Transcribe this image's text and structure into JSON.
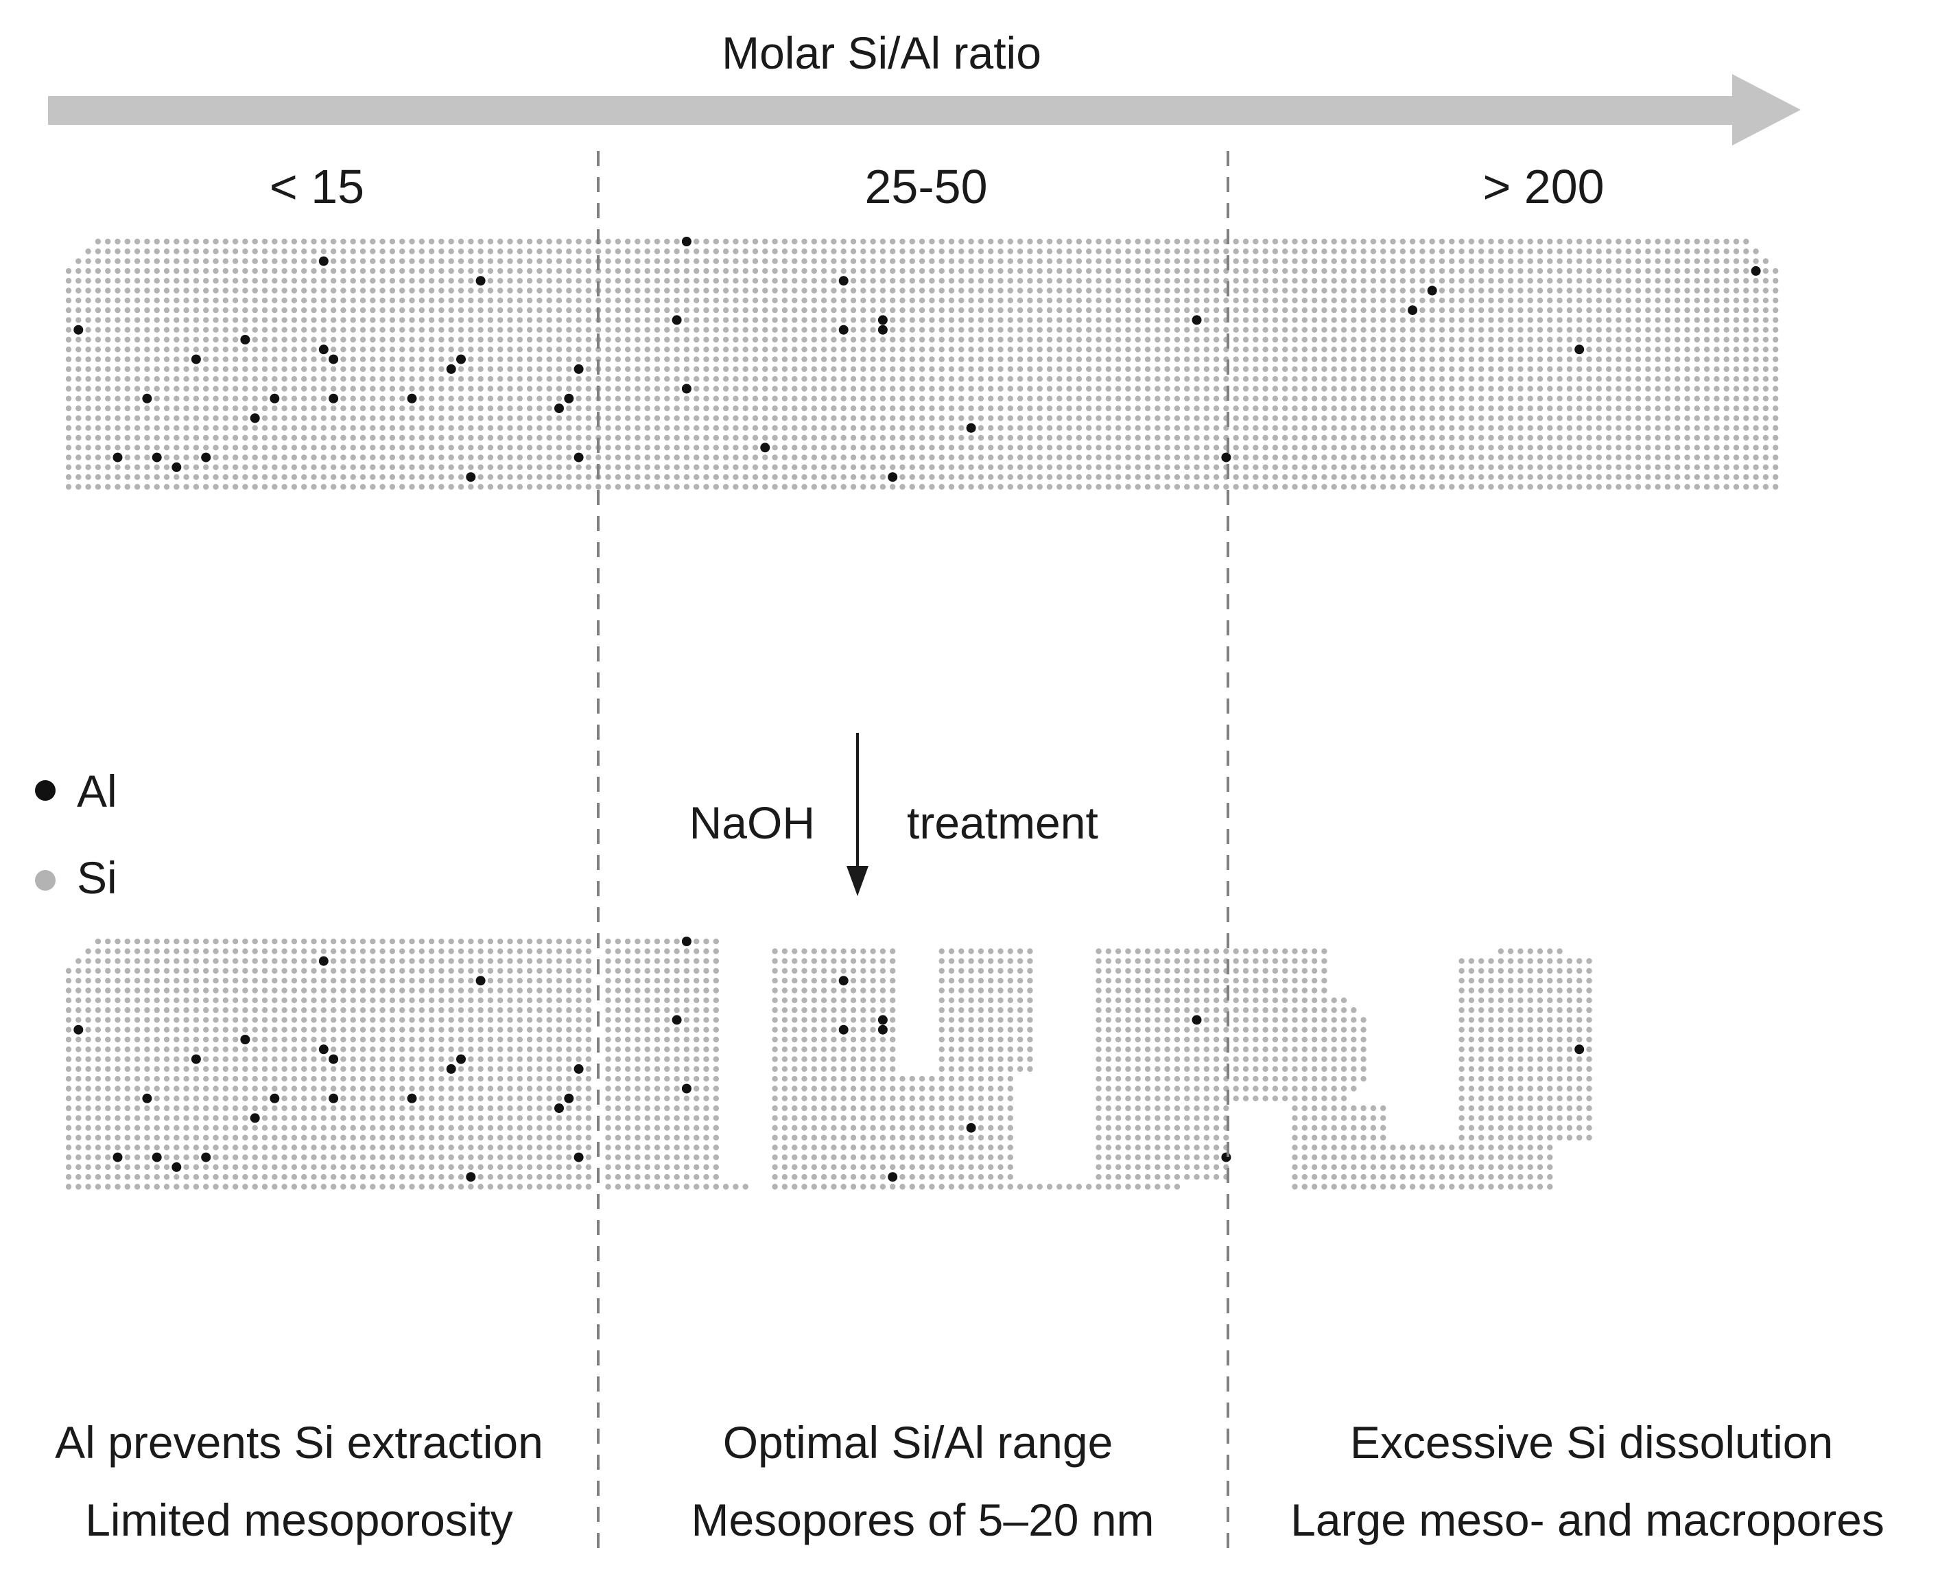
{
  "header": {
    "axis_title": "Molar Si/Al ratio",
    "ranges": [
      "< 15",
      "25-50",
      "> 200"
    ]
  },
  "legend": {
    "items": [
      {
        "label": "Al",
        "color": "#111111"
      },
      {
        "label": "Si",
        "color": "#b3b3b3"
      }
    ]
  },
  "treatment": {
    "left": "NaOH",
    "right": "treatment"
  },
  "captions": [
    {
      "line1": "Al prevents Si extraction",
      "line2": "Limited mesoporosity"
    },
    {
      "line1": "Optimal Si/Al range",
      "line2": "Mesopores of 5–20 nm"
    },
    {
      "line1": "Excessive Si dissolution",
      "line2": "Large meso- and macropores"
    }
  ],
  "colors": {
    "arrow": "#c4c4c4",
    "si_dot": "#b3b3b3",
    "al_dot": "#111111",
    "divider": "#808080"
  }
}
